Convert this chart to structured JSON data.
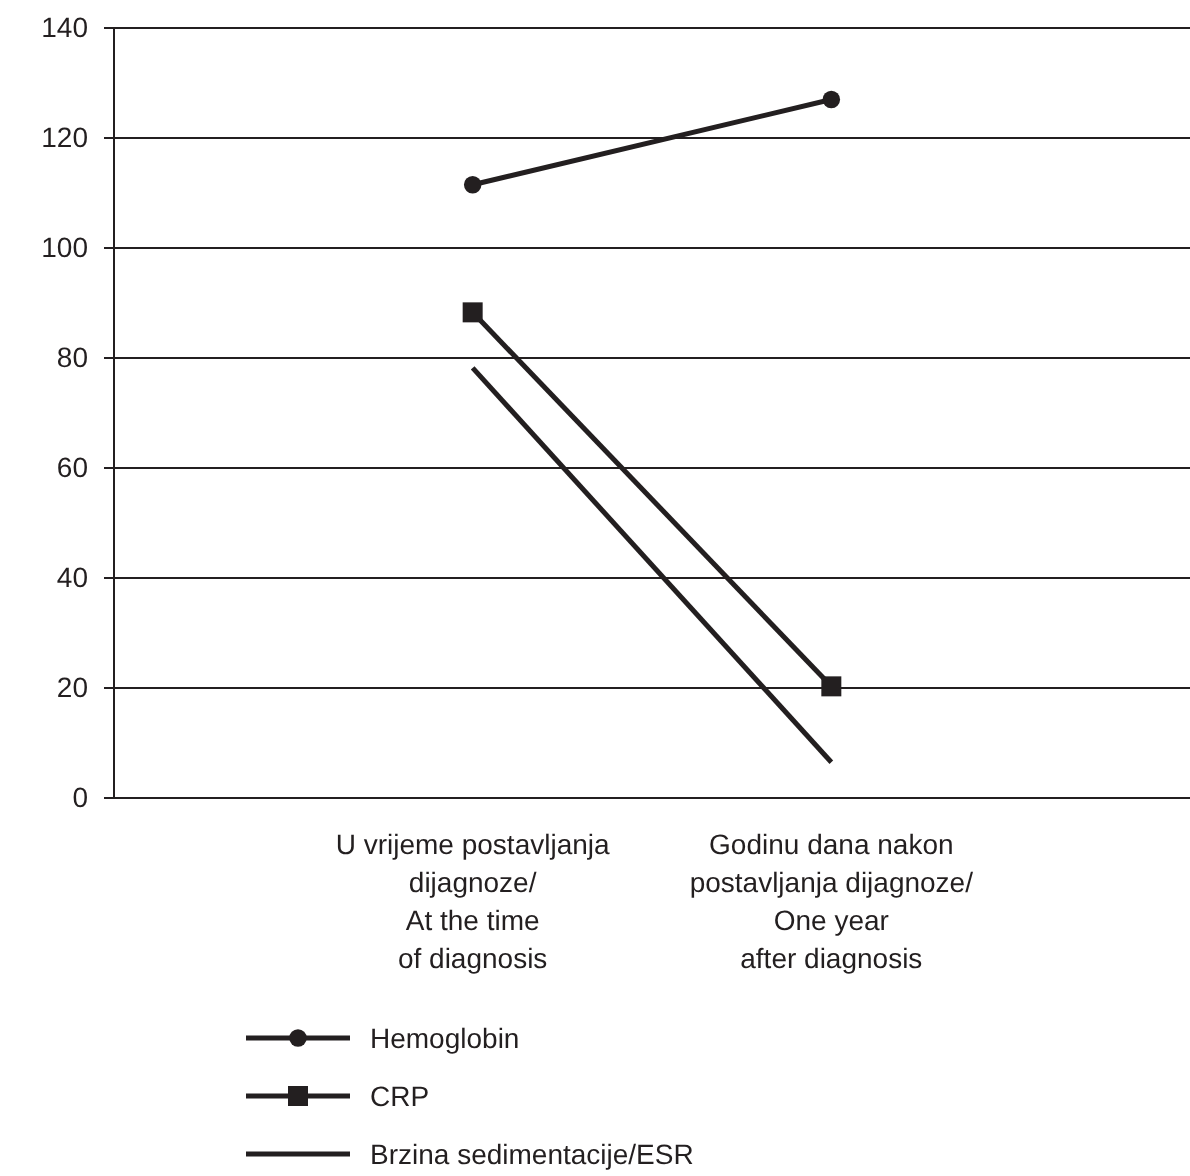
{
  "chart_data": {
    "type": "line",
    "categories": [
      "U vrijeme postavljanja\ndijagnoze/\nAt the time\nof diagnosis",
      "Godinu dana nakon\npostavljanja dijagnoze/\nOne year\nafter diagnosis"
    ],
    "series": [
      {
        "name": "Hemoglobin",
        "color": "#231f20",
        "values": [
          111.5,
          127
        ],
        "marker": "circle"
      },
      {
        "name": "CRP",
        "color": "#231f20",
        "values": [
          88.3,
          20.3
        ],
        "marker": "square"
      },
      {
        "name": "Brzina sedimentacije/ESR",
        "color": "#231f20",
        "values": [
          78.2,
          6.5
        ],
        "marker": "none"
      }
    ],
    "ylim": [
      0,
      140
    ],
    "yticks": [
      0,
      20,
      40,
      60,
      80,
      100,
      120,
      140
    ],
    "grid": "y",
    "legend": "bottom",
    "line_style": "solid"
  }
}
